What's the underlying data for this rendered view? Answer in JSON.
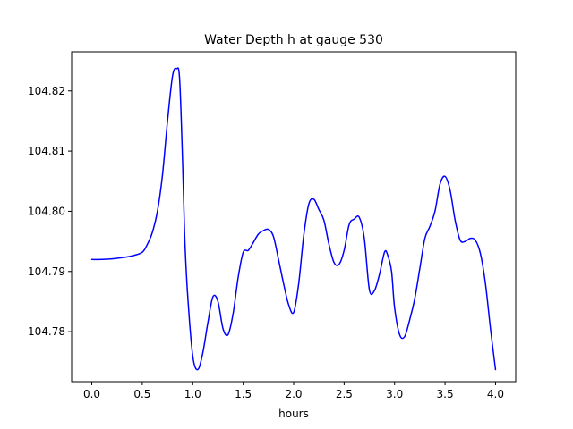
{
  "chart_data": {
    "type": "line",
    "title": "Water Depth h at gauge 530",
    "xlabel": "hours",
    "ylabel": "",
    "xlim": [
      -0.2,
      4.2
    ],
    "ylim": [
      104.7717,
      104.8265
    ],
    "xticks": [
      0.0,
      0.5,
      1.0,
      1.5,
      2.0,
      2.5,
      3.0,
      3.5,
      4.0
    ],
    "xtick_labels": [
      "0.0",
      "0.5",
      "1.0",
      "1.5",
      "2.0",
      "2.5",
      "3.0",
      "3.5",
      "4.0"
    ],
    "yticks": [
      104.78,
      104.79,
      104.8,
      104.81,
      104.82
    ],
    "ytick_labels": [
      "104.78",
      "104.79",
      "104.80",
      "104.81",
      "104.82"
    ],
    "grid": false,
    "line_color": "#0000ff",
    "series": [
      {
        "x": [
          0.0,
          0.1,
          0.2,
          0.3,
          0.4,
          0.5,
          0.55,
          0.6,
          0.65,
          0.7,
          0.75,
          0.8,
          0.84,
          0.87,
          0.9,
          0.92,
          0.95,
          1.0,
          1.05,
          1.1,
          1.15,
          1.2,
          1.25,
          1.3,
          1.35,
          1.4,
          1.45,
          1.5,
          1.55,
          1.6,
          1.65,
          1.7,
          1.75,
          1.8,
          1.85,
          1.9,
          1.95,
          2.0,
          2.05,
          2.1,
          2.15,
          2.2,
          2.25,
          2.3,
          2.35,
          2.4,
          2.45,
          2.5,
          2.55,
          2.6,
          2.65,
          2.7,
          2.75,
          2.8,
          2.85,
          2.9,
          2.93,
          2.97,
          3.0,
          3.05,
          3.1,
          3.15,
          3.2,
          3.25,
          3.3,
          3.35,
          3.4,
          3.45,
          3.5,
          3.55,
          3.6,
          3.65,
          3.7,
          3.75,
          3.8,
          3.85,
          3.9,
          3.95,
          4.0
        ],
        "values": [
          104.792,
          104.792,
          104.7921,
          104.7923,
          104.7926,
          104.7932,
          104.7945,
          104.7965,
          104.8,
          104.806,
          104.815,
          104.8225,
          104.8237,
          104.822,
          104.808,
          104.796,
          104.786,
          104.776,
          104.7737,
          104.7765,
          104.7815,
          104.7858,
          104.785,
          104.7805,
          104.7795,
          104.783,
          104.789,
          104.7932,
          104.7935,
          104.7948,
          104.7962,
          104.7968,
          104.797,
          104.7958,
          104.792,
          104.788,
          104.7845,
          104.7832,
          104.788,
          104.796,
          104.8012,
          104.802,
          104.8003,
          104.7985,
          104.7945,
          104.7915,
          104.7912,
          104.7935,
          104.7978,
          104.7987,
          104.799,
          104.7955,
          104.787,
          104.7868,
          104.7895,
          104.7932,
          104.7928,
          104.79,
          104.784,
          104.7795,
          104.7792,
          104.782,
          104.7855,
          104.7905,
          104.7955,
          104.7975,
          104.8,
          104.8045,
          104.8058,
          104.8035,
          104.7985,
          104.7952,
          104.795,
          104.7955,
          104.7952,
          104.793,
          104.788,
          104.7805,
          104.7737
        ]
      }
    ]
  }
}
